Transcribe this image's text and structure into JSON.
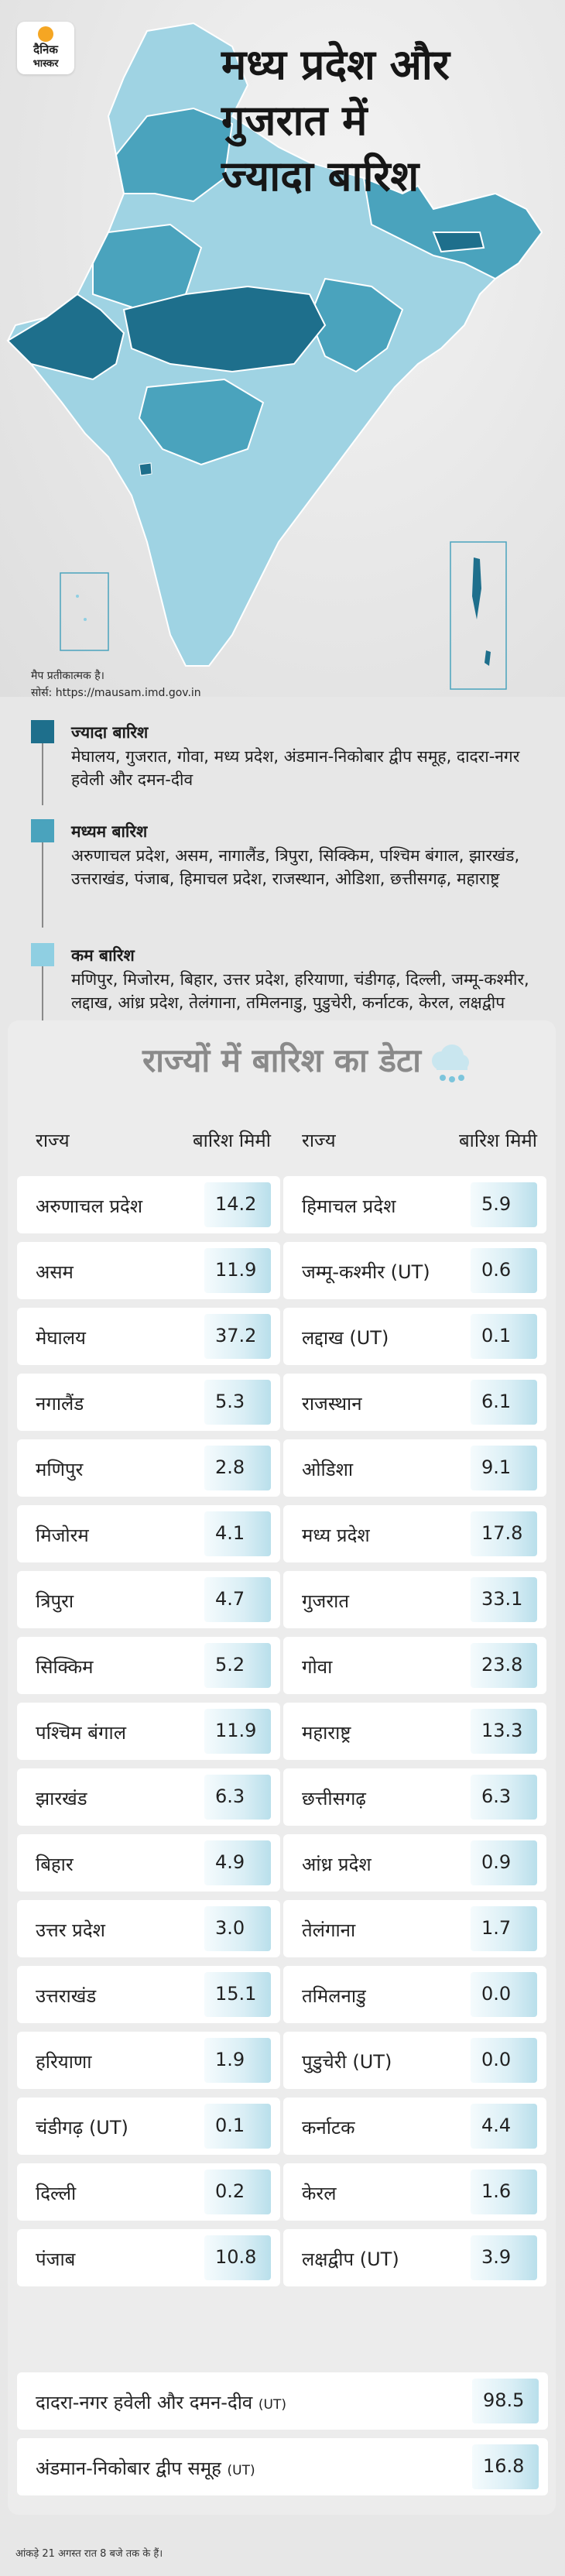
{
  "brand": {
    "line1": "दैनिक",
    "line2": "भास्कर"
  },
  "title": {
    "line1": "मध्य प्रदेश और",
    "line2": "गुजरात में",
    "line3": "ज्यादा बारिश"
  },
  "map_note": {
    "line1": "मैप प्रतीकात्मक है।",
    "line2": "सोर्स: https://mausam.imd.gov.in"
  },
  "colors": {
    "high": "#1e6f8c",
    "medium": "#4aa3bd",
    "low": "#8fcfe2"
  },
  "legend": [
    {
      "title": "ज्यादा बारिश",
      "text": "मेघालय, गुजरात, गोवा, मध्य प्रदेश, अंडमान-निकोबार द्वीप समूह, दादरा-नगर हवेली और दमन-दीव"
    },
    {
      "title": "मध्यम बारिश",
      "text": "अरुणाचल प्रदेश, असम, नागालैंड, त्रिपुरा, सिक्किम, पश्चिम बंगाल, झारखंड, उत्तराखंड, पंजाब, हिमाचल प्रदेश, राजस्थान, ओडिशा, छत्तीसगढ़, महाराष्ट्र"
    },
    {
      "title": "कम बारिश",
      "text": "मणिपुर, मिजोरम, बिहार, उत्तर प्रदेश, हरियाणा, चंडीगढ़, दिल्ली, जम्मू-कश्मीर, लद्दाख, आंध्र प्रदेश, तेलंगाना, तमिलनाडु, पुडुचेरी, कर्नाटक, केरल, लक्षद्वीप"
    }
  ],
  "table": {
    "title": "राज्यों में बारिश का डेटा",
    "col_state": "राज्य",
    "col_value": "बारिश मिमी",
    "left": [
      {
        "state": "अरुणाचल प्रदेश",
        "value": "14.2"
      },
      {
        "state": "असम",
        "value": "11.9"
      },
      {
        "state": "मेघालय",
        "value": "37.2"
      },
      {
        "state": "नगालैंड",
        "value": "5.3"
      },
      {
        "state": "मणिपुर",
        "value": "2.8"
      },
      {
        "state": "मिजोरम",
        "value": "4.1"
      },
      {
        "state": "त्रिपुरा",
        "value": "4.7"
      },
      {
        "state": "सिक्किम",
        "value": "5.2"
      },
      {
        "state": "पश्चिम बंगाल",
        "value": "11.9"
      },
      {
        "state": "झारखंड",
        "value": "6.3"
      },
      {
        "state": "बिहार",
        "value": "4.9"
      },
      {
        "state": "उत्तर प्रदेश",
        "value": "3.0"
      },
      {
        "state": "उत्तराखंड",
        "value": "15.1"
      },
      {
        "state": "हरियाणा",
        "value": "1.9"
      },
      {
        "state": "चंडीगढ़ (UT)",
        "value": "0.1"
      },
      {
        "state": "दिल्ली",
        "value": "0.2"
      },
      {
        "state": "पंजाब",
        "value": "10.8"
      }
    ],
    "right": [
      {
        "state": "हिमाचल प्रदेश",
        "value": "5.9"
      },
      {
        "state": "जम्मू-कश्मीर (UT)",
        "value": "0.6"
      },
      {
        "state": "लद्दाख (UT)",
        "value": "0.1"
      },
      {
        "state": "राजस्थान",
        "value": "6.1"
      },
      {
        "state": "ओडिशा",
        "value": "9.1"
      },
      {
        "state": "मध्य प्रदेश",
        "value": "17.8"
      },
      {
        "state": "गुजरात",
        "value": "33.1"
      },
      {
        "state": "गोवा",
        "value": "23.8"
      },
      {
        "state": "महाराष्ट्र",
        "value": "13.3"
      },
      {
        "state": "छत्तीसगढ़",
        "value": "6.3"
      },
      {
        "state": "आंध्र प्रदेश",
        "value": "0.9"
      },
      {
        "state": "तेलंगाना",
        "value": "1.7"
      },
      {
        "state": "तमिलनाडु",
        "value": "0.0"
      },
      {
        "state": "पुडुचेरी (UT)",
        "value": "0.0"
      },
      {
        "state": "कर्नाटक",
        "value": "4.4"
      },
      {
        "state": "केरल",
        "value": "1.6"
      },
      {
        "state": "लक्षद्वीप (UT)",
        "value": "3.9"
      }
    ],
    "wide": [
      {
        "state": "दादरा-नगर हवेली और दमन-दीव",
        "suffix": "(UT)",
        "value": "98.5"
      },
      {
        "state": "अंडमान-निकोबार द्वीप समूह",
        "suffix": "(UT)",
        "value": "16.8"
      }
    ]
  },
  "footnote": "आंकड़े 21 अगस्त रात 8 बजे तक के हैं।"
}
